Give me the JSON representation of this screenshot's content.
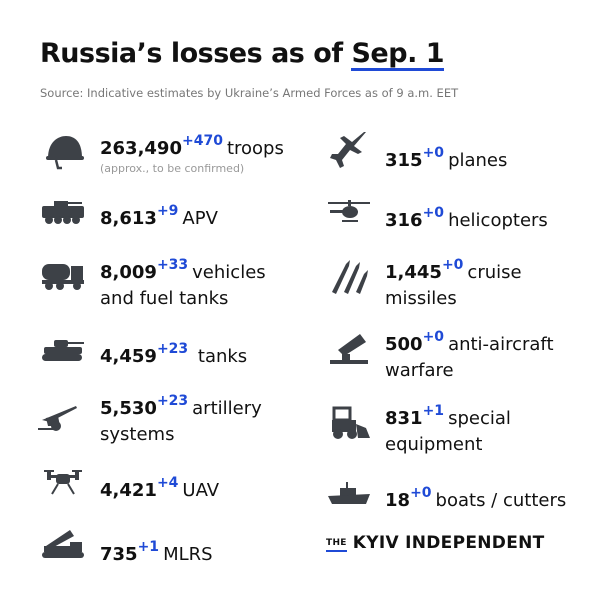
{
  "title": {
    "prefix": "Russia’s losses as of",
    "date": "Sep. 1"
  },
  "source": "Source: Indicative estimates by Ukraine’s Armed Forces as of 9 a.m. EET",
  "accent_color": "#1f4ad6",
  "left": [
    {
      "icon": "helmet-icon",
      "value": "263,490",
      "delta": "+470",
      "label": "troops",
      "note": "(approx., to be confirmed)"
    },
    {
      "icon": "apv-icon",
      "value": "8,613",
      "delta": "+9",
      "label": "APV"
    },
    {
      "icon": "fuel-truck-icon",
      "value": "8,009",
      "delta": "+33",
      "label": "vehicles",
      "label2": "and fuel tanks"
    },
    {
      "icon": "tank-icon",
      "value": "4,459",
      "delta": "+23",
      "label": "tanks"
    },
    {
      "icon": "artillery-icon",
      "value": "5,530",
      "delta": "+23",
      "label": "artillery",
      "label2": "systems"
    },
    {
      "icon": "drone-icon",
      "value": "4,421",
      "delta": "+4",
      "label": "UAV"
    },
    {
      "icon": "mlrs-icon",
      "value": "735",
      "delta": "+1",
      "label": "MLRS"
    }
  ],
  "right": [
    {
      "icon": "plane-icon",
      "value": "315",
      "delta": "+0",
      "label": "planes"
    },
    {
      "icon": "helicopter-icon",
      "value": "316",
      "delta": "+0",
      "label": "helicopters"
    },
    {
      "icon": "missile-icon",
      "value": "1,445",
      "delta": "+0",
      "label": "cruise",
      "label2": "missiles"
    },
    {
      "icon": "anti-aircraft-icon",
      "value": "500",
      "delta": "+0",
      "label": "anti-aircraft",
      "label2": "warfare"
    },
    {
      "icon": "loader-icon",
      "value": "831",
      "delta": "+1",
      "label": "special",
      "label2": "equipment"
    },
    {
      "icon": "ship-icon",
      "value": "18",
      "delta": "+0",
      "label": "boats / cutters"
    }
  ],
  "logo": {
    "the": "THE",
    "name": "KYIV INDEPENDENT"
  }
}
